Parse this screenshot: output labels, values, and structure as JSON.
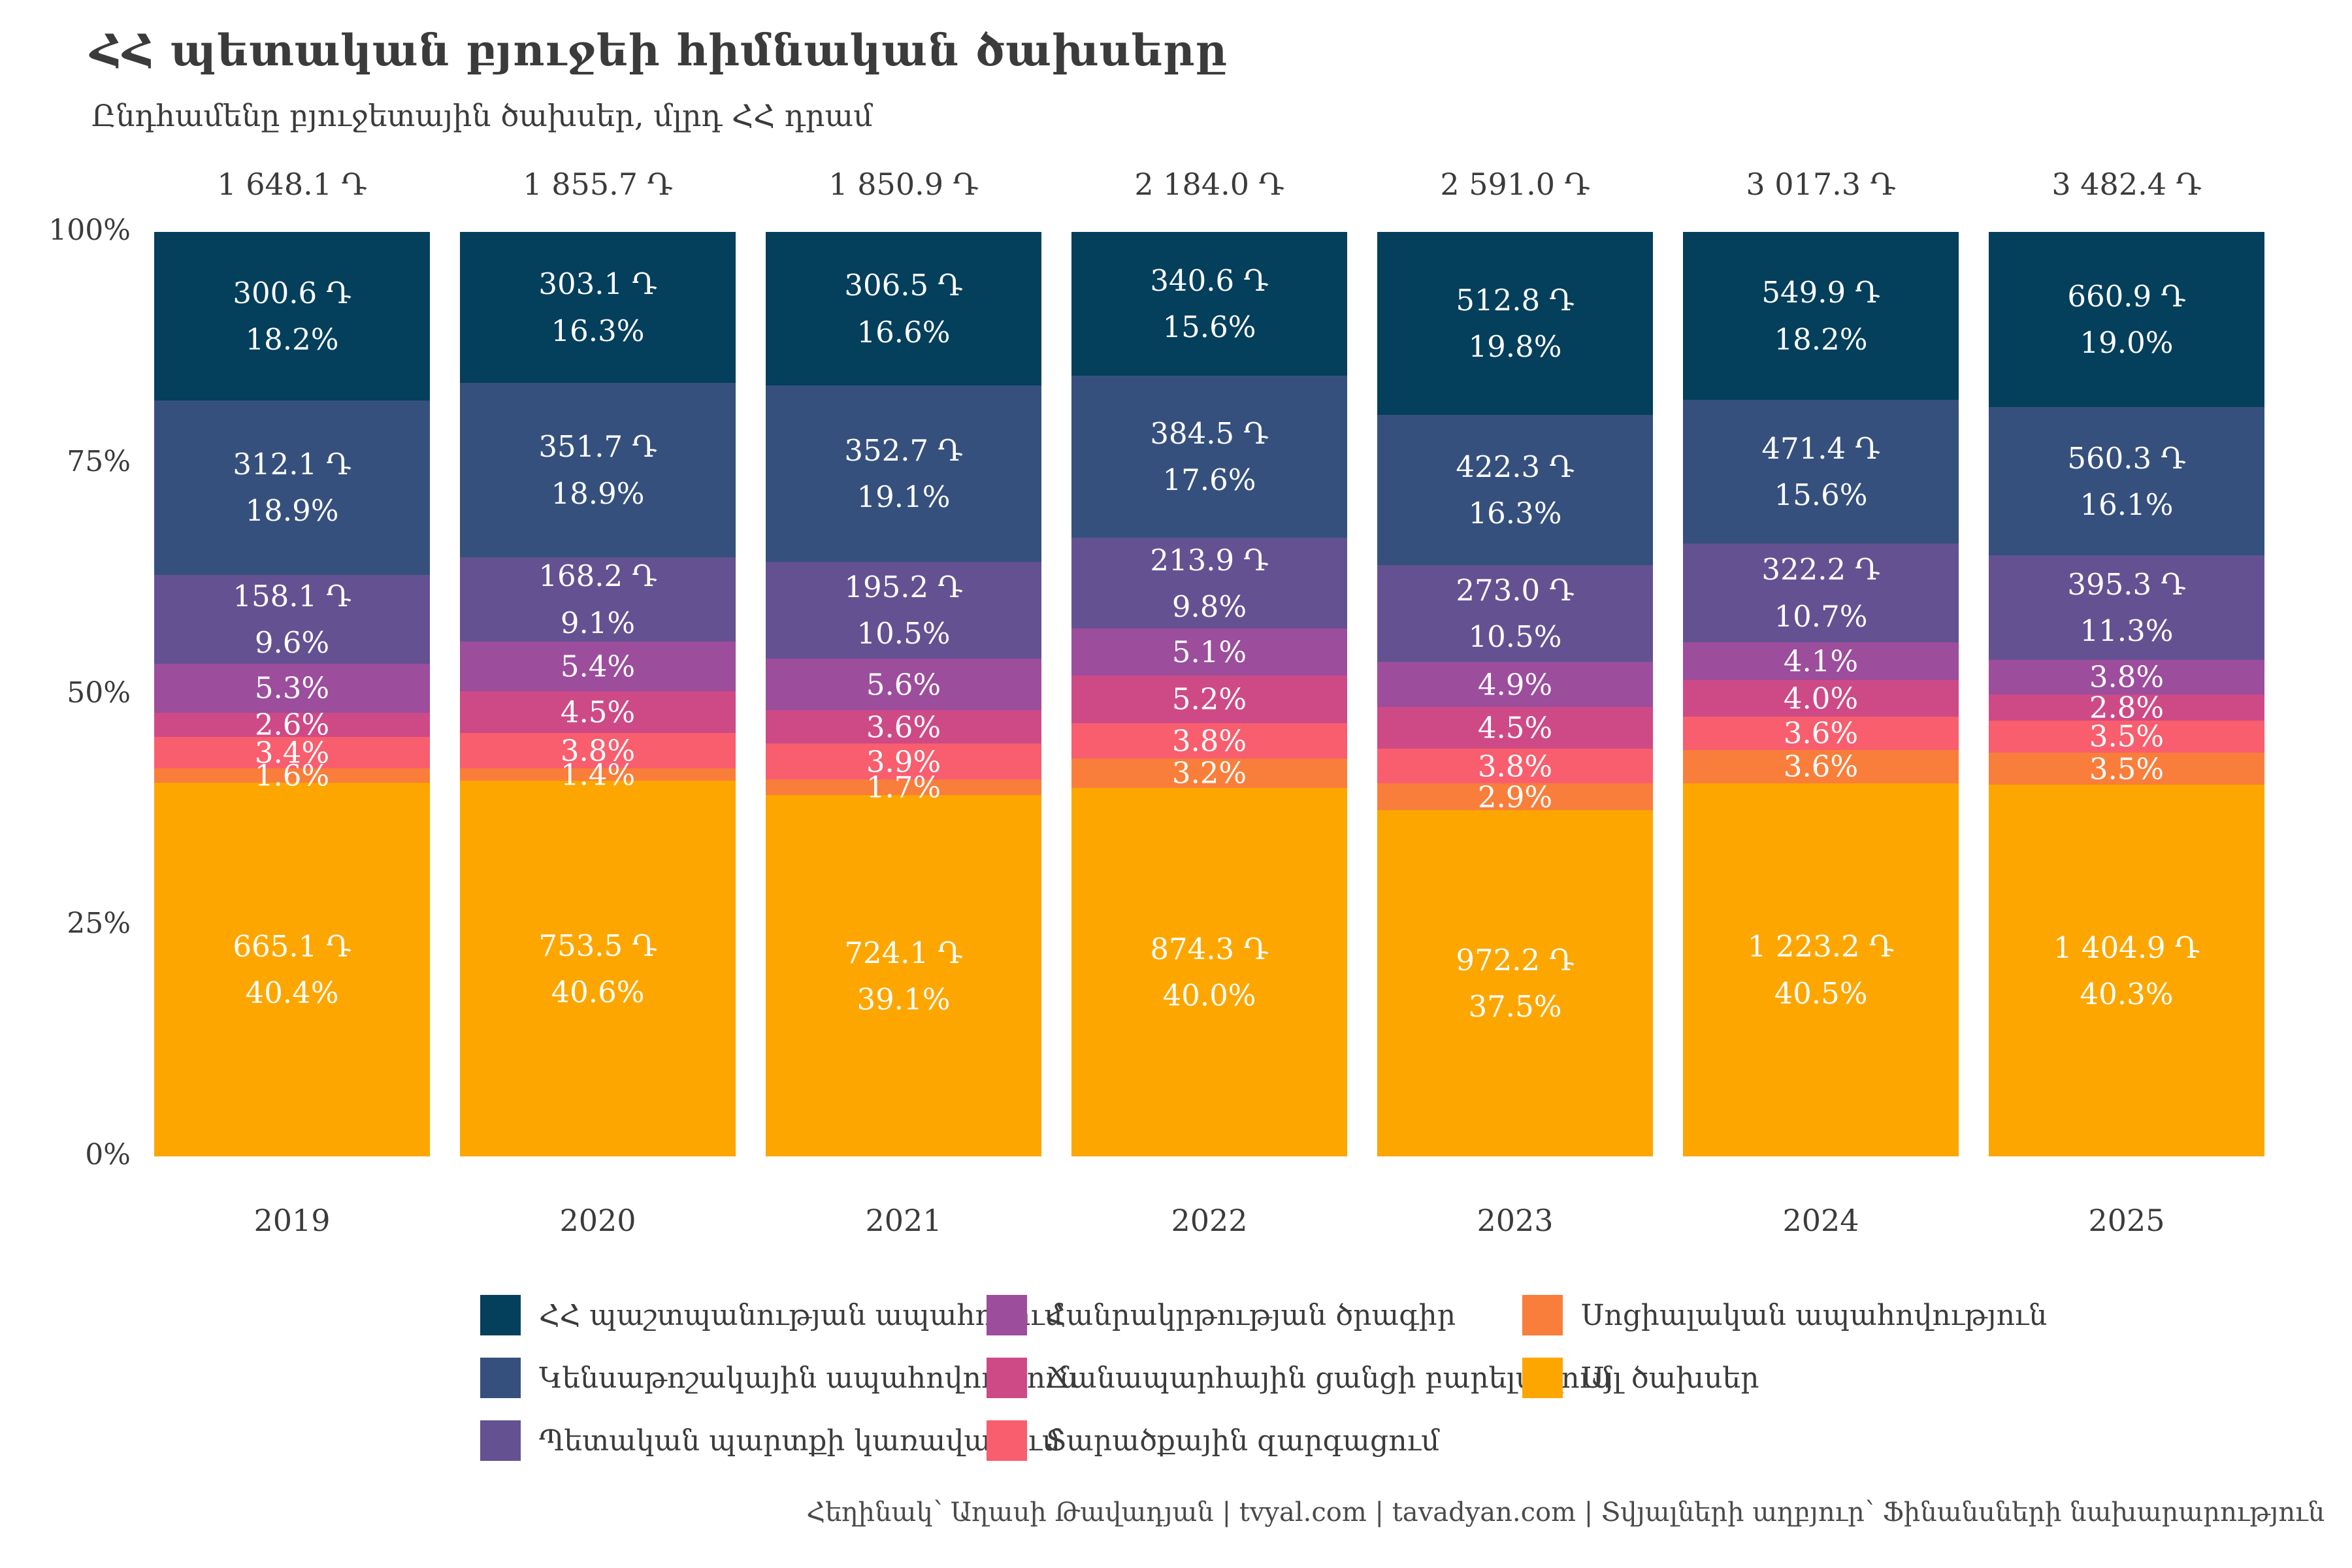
{
  "title": "ՀՀ պետական բյուջեի հիմնական ծախսերը",
  "subtitle": "Ընդհամենը բյուջետային ծախսեր, մլրդ ՀՀ դրամ",
  "y_axis": {
    "ticks": [
      "100%",
      "75%",
      "50%",
      "25%",
      "0%"
    ]
  },
  "footer": {
    "text": "Հեղինակ՝ Աղասի Թավադյան   |   tvyal.com   |   tavadyan.com   |   Տվյալների աղբյուր՝ Ֆինանսների նախարարություն"
  },
  "chart_data": {
    "type": "bar",
    "stacked": "100%",
    "grid": false,
    "legend_position": "bottom",
    "ylim": [
      0,
      100
    ],
    "unit": "մլրդ ՀՀ դրամ",
    "currency_symbol": "Դ",
    "categories": [
      "2019",
      "2020",
      "2021",
      "2022",
      "2023",
      "2024",
      "2025"
    ],
    "totals": [
      "1 648.1 Դ",
      "1 855.7 Դ",
      "1 850.9 Դ",
      "2 184.0 Դ",
      "2 591.0 Դ",
      "3 017.3 Դ",
      "3 482.4 Դ"
    ],
    "totals_bln": [
      1648.1,
      1855.7,
      1850.9,
      2184.0,
      2591.0,
      3017.3,
      3482.4
    ],
    "series": [
      {
        "name": "ՀՀ պաշտպանության ապահովում",
        "color": "#043f5c",
        "values_bln": [
          300.6,
          303.1,
          306.5,
          340.6,
          512.8,
          549.9,
          660.9
        ],
        "amounts": [
          "300.6 Դ",
          "303.1 Դ",
          "306.5 Դ",
          "340.6 Դ",
          "512.8 Դ",
          "549.9 Դ",
          "660.9 Դ"
        ],
        "percent": [
          18.2,
          16.3,
          16.6,
          15.6,
          19.8,
          18.2,
          19.0
        ]
      },
      {
        "name": "Կենսաթոշակային ապահովություն",
        "color": "#36507d",
        "values_bln": [
          312.1,
          351.7,
          352.7,
          384.5,
          422.3,
          471.4,
          560.3
        ],
        "amounts": [
          "312.1 Դ",
          "351.7 Դ",
          "352.7 Դ",
          "384.5 Դ",
          "422.3 Դ",
          "471.4 Դ",
          "560.3 Դ"
        ],
        "percent": [
          18.9,
          18.9,
          19.1,
          17.6,
          16.3,
          15.6,
          16.1
        ]
      },
      {
        "name": "Պետական պարտքի կառավարում",
        "color": "#645191",
        "values_bln": [
          158.1,
          168.2,
          195.2,
          213.9,
          273.0,
          322.2,
          395.3
        ],
        "amounts": [
          "158.1 Դ",
          "168.2 Դ",
          "195.2 Դ",
          "213.9 Դ",
          "273.0 Դ",
          "322.2 Դ",
          "395.3 Դ"
        ],
        "percent": [
          9.6,
          9.1,
          10.5,
          9.8,
          10.5,
          10.7,
          11.3
        ]
      },
      {
        "name": "Հանրակրթության ծրագիր",
        "color": "#9c4d9c",
        "percent": [
          5.3,
          5.4,
          5.6,
          5.1,
          4.9,
          4.1,
          3.8
        ]
      },
      {
        "name": "Ճանապարհային ցանցի բարելավում",
        "color": "#ce4a86",
        "percent": [
          2.6,
          4.5,
          3.6,
          5.2,
          4.5,
          4.0,
          2.8
        ]
      },
      {
        "name": "Տարածքային զարգացում",
        "color": "#f85e6e",
        "percent": [
          3.4,
          3.8,
          3.9,
          3.8,
          3.8,
          3.6,
          3.5
        ]
      },
      {
        "name": "Սոցիալական ապահովություն",
        "color": "#f97e3b",
        "percent": [
          1.6,
          1.4,
          1.7,
          3.2,
          2.9,
          3.6,
          3.5
        ]
      },
      {
        "name": "Այլ ծախսեր",
        "color": "#fda600",
        "values_bln": [
          665.1,
          753.5,
          724.1,
          874.3,
          972.2,
          1223.2,
          1404.9
        ],
        "amounts": [
          "665.1 Դ",
          "753.5 Դ",
          "724.1 Դ",
          "874.3 Դ",
          "972.2 Դ",
          "1 223.2 Դ",
          "1 404.9 Դ"
        ],
        "percent": [
          40.4,
          40.6,
          39.1,
          40.0,
          37.5,
          40.5,
          40.3
        ]
      }
    ]
  }
}
